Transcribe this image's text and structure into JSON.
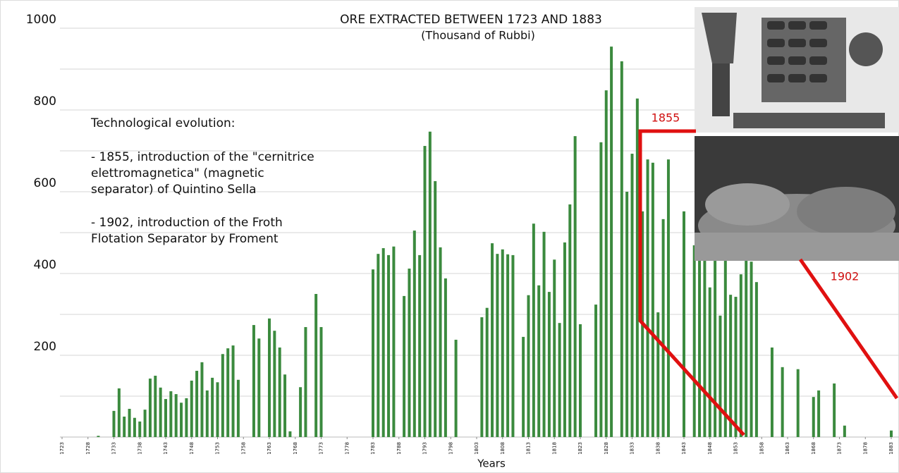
{
  "chart_data": {
    "type": "bar",
    "title": "ORE EXTRACTED BETWEEN 1723 AND 1883",
    "subtitle": "(Thousand of Rubbi)",
    "x_label": "Years",
    "x": [
      1730,
      1733,
      1734,
      1735,
      1736,
      1737,
      1738,
      1739,
      1740,
      1741,
      1742,
      1743,
      1744,
      1745,
      1746,
      1747,
      1748,
      1749,
      1750,
      1751,
      1752,
      1753,
      1754,
      1755,
      1756,
      1757,
      1760,
      1761,
      1763,
      1764,
      1765,
      1766,
      1767,
      1769,
      1770,
      1772,
      1773,
      1783,
      1784,
      1785,
      1786,
      1787,
      1789,
      1790,
      1791,
      1792,
      1793,
      1794,
      1795,
      1796,
      1797,
      1799,
      1804,
      1805,
      1806,
      1807,
      1808,
      1809,
      1810,
      1812,
      1813,
      1814,
      1815,
      1816,
      1817,
      1818,
      1819,
      1820,
      1821,
      1822,
      1823,
      1826,
      1827,
      1828,
      1829,
      1831,
      1832,
      1833,
      1834,
      1835,
      1836,
      1837,
      1838,
      1839,
      1840,
      1843,
      1845,
      1846,
      1847,
      1848,
      1849,
      1850,
      1851,
      1852,
      1853,
      1854,
      1855,
      1856,
      1857,
      1860,
      1862,
      1865,
      1868,
      1869,
      1872,
      1874,
      1883
    ],
    "values": [
      3,
      64,
      119,
      50,
      69,
      47,
      38,
      67,
      143,
      150,
      121,
      93,
      112,
      105,
      84,
      95,
      138,
      162,
      183,
      114,
      145,
      134,
      203,
      217,
      224,
      140,
      274,
      241,
      290,
      260,
      219,
      153,
      14,
      122,
      269,
      350,
      269,
      410,
      448,
      462,
      445,
      466,
      345,
      412,
      505,
      445,
      712,
      747,
      626,
      464,
      388,
      238,
      293,
      316,
      474,
      448,
      459,
      447,
      445,
      245,
      347,
      522,
      371,
      502,
      355,
      434,
      279,
      476,
      569,
      736,
      276,
      324,
      721,
      848,
      955,
      919,
      600,
      693,
      828,
      552,
      679,
      671,
      305,
      533,
      679,
      552,
      469,
      452,
      431,
      366,
      431,
      297,
      483,
      348,
      343,
      398,
      474,
      429,
      379,
      219,
      171,
      166,
      98,
      114,
      131,
      28,
      16
    ],
    "color": "#3b8a3e",
    "xlim": [
      1723,
      1883
    ],
    "xticks": [
      1723,
      1728,
      1733,
      1738,
      1743,
      1748,
      1753,
      1758,
      1763,
      1768,
      1773,
      1778,
      1783,
      1788,
      1793,
      1798,
      1803,
      1808,
      1813,
      1818,
      1823,
      1828,
      1833,
      1838,
      1843,
      1848,
      1853,
      1858,
      1863,
      1868,
      1873,
      1878,
      1883
    ],
    "ylim": [
      0,
      1000
    ],
    "yticks": [
      200,
      400,
      600,
      800,
      1000
    ],
    "y_minor_ticks": [
      100,
      300,
      500,
      700,
      900
    ],
    "grid": true,
    "annotations": {
      "heading": "Technological evolution:",
      "items": [
        [
          "- 1855, introduction of the \"cernitrice",
          "elettromagnetica\" (magnetic",
          "separator) of Quintino Sella"
        ],
        [
          "- 1902, introduction of the Froth",
          "Flotation Separator by Froment"
        ]
      ],
      "marker_1855": "1855",
      "marker_1902": "1902"
    }
  }
}
